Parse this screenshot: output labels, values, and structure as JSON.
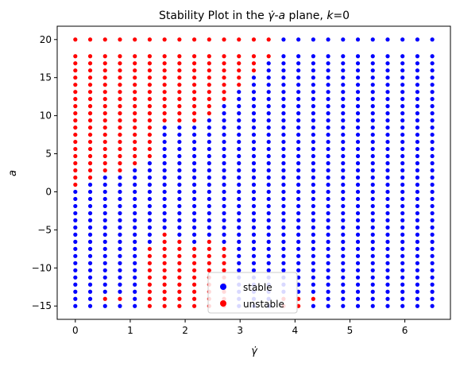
{
  "chart_data": {
    "type": "scatter",
    "title_prefix": "Stability Plot in the ",
    "title_gdot": "γ̇",
    "title_sep": "-",
    "title_a": "a",
    "title_mid": " plane, ",
    "title_k": "k",
    "title_suffix": "=0",
    "xlabel": "γ̇",
    "ylabel": "a",
    "xlim": [
      -0.33,
      6.83
    ],
    "ylim": [
      -16.75,
      21.75
    ],
    "xticks": [
      0,
      1,
      2,
      3,
      4,
      5,
      6
    ],
    "yticks": [
      -15,
      -10,
      -5,
      0,
      5,
      10,
      15,
      20
    ],
    "grid": false,
    "legend_position": "bottom-center",
    "x_grid": {
      "start": 0,
      "step": 0.2708,
      "count": 25
    },
    "y_grid": {
      "start": -15,
      "step": 0.9375,
      "count": 37
    },
    "series": [
      {
        "name": "stable",
        "color": "#0000ff"
      },
      {
        "name": "unstable",
        "color": "#ff0000"
      }
    ],
    "unstable_rows": [
      [
        2,
        3,
        -14.06
      ],
      [
        5,
        7,
        -15.0
      ],
      [
        5,
        8,
        -14.06
      ],
      [
        5,
        8,
        -13.13
      ],
      [
        5,
        8,
        -12.19
      ],
      [
        5,
        8,
        -11.25
      ],
      [
        5,
        8,
        -10.31
      ],
      [
        5,
        7,
        -9.38
      ],
      [
        5,
        7,
        -8.44
      ],
      [
        5,
        7,
        -7.5
      ],
      [
        6,
        7,
        -6.56
      ],
      [
        6,
        6,
        -5.63
      ],
      [
        8,
        10,
        -15.0
      ],
      [
        8,
        10,
        -14.06
      ],
      [
        8,
        10,
        -13.13
      ],
      [
        8,
        10,
        -12.19
      ],
      [
        8,
        10,
        -11.25
      ],
      [
        8,
        10,
        -10.31
      ],
      [
        8,
        10,
        -9.38
      ],
      [
        8,
        10,
        -8.44
      ],
      [
        8,
        10,
        -7.5
      ],
      [
        9,
        9,
        -6.56
      ],
      [
        14,
        15,
        -15.0
      ],
      [
        15,
        15,
        -14.06
      ],
      [
        14,
        16,
        -14.06
      ],
      [
        0,
        0,
        0.94
      ],
      [
        0,
        1,
        1.88
      ],
      [
        0,
        3,
        2.81
      ],
      [
        0,
        4,
        3.75
      ],
      [
        0,
        5,
        4.69
      ],
      [
        0,
        5,
        5.63
      ],
      [
        0,
        5,
        6.56
      ],
      [
        0,
        5,
        7.5
      ],
      [
        0,
        5,
        8.44
      ],
      [
        0,
        8,
        9.38
      ],
      [
        0,
        9,
        10.31
      ],
      [
        0,
        9,
        11.25
      ],
      [
        0,
        10,
        12.19
      ],
      [
        0,
        10,
        13.13
      ],
      [
        0,
        11,
        14.06
      ],
      [
        0,
        11,
        15.0
      ],
      [
        0,
        12,
        15.94
      ],
      [
        0,
        12,
        16.88
      ],
      [
        0,
        13,
        17.81
      ],
      [
        0,
        13,
        18.75
      ],
      [
        0,
        13,
        19.69
      ],
      [
        0,
        13,
        20.0
      ]
    ]
  }
}
